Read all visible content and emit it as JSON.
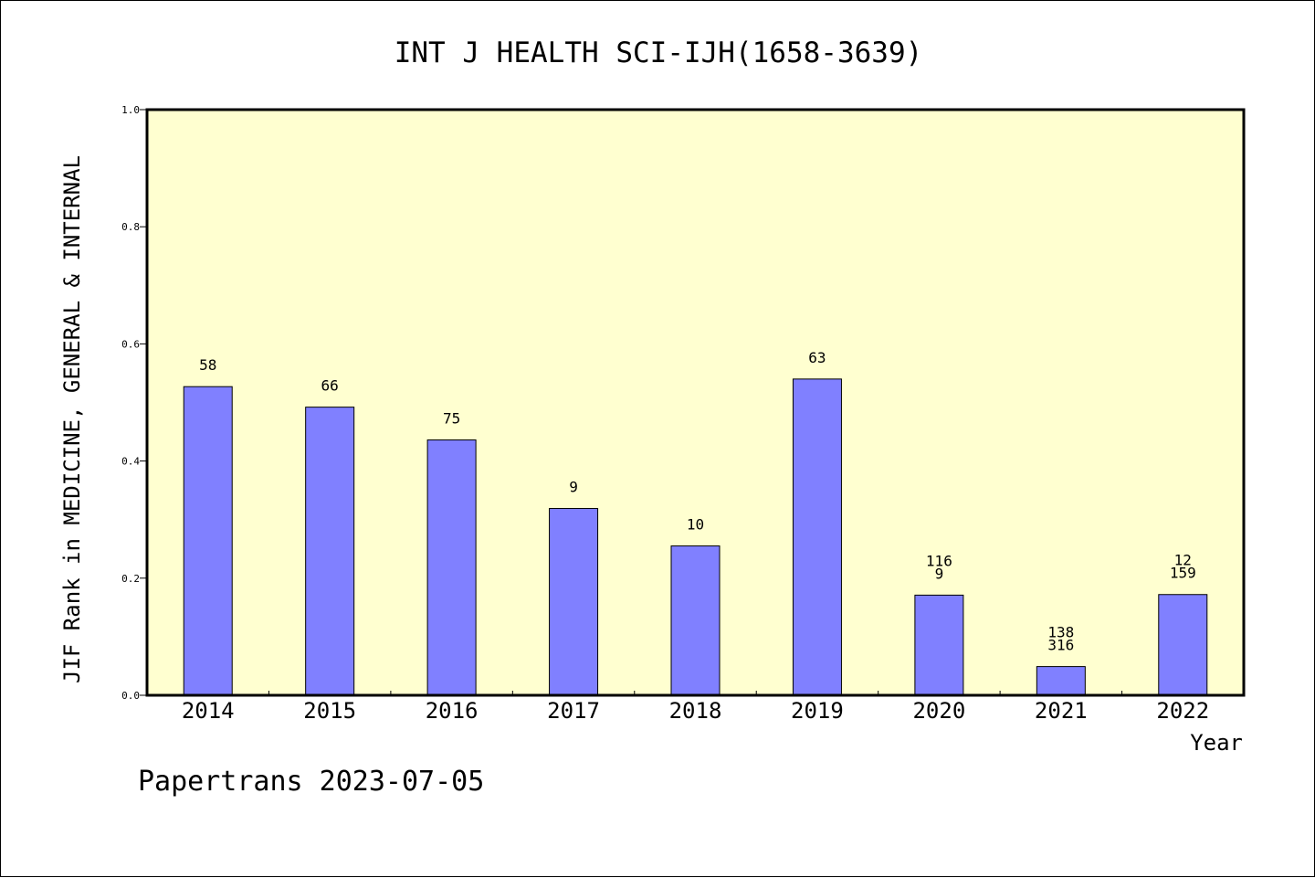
{
  "chart_data": {
    "type": "bar",
    "title": "INT J HEALTH SCI-IJH(1658-3639)",
    "xlabel": "Year",
    "ylabel": "JIF Rank in MEDICINE, GENERAL & INTERNAL",
    "ylim": [
      0.0,
      1.0
    ],
    "yticks": [
      "0.0",
      "0.2",
      "0.4",
      "0.6",
      "0.8",
      "1.0"
    ],
    "categories": [
      "2014",
      "2015",
      "2016",
      "2017",
      "2018",
      "2019",
      "2020",
      "2021",
      "2022"
    ],
    "values": [
      0.527,
      0.492,
      0.436,
      0.319,
      0.255,
      0.54,
      0.171,
      0.049,
      0.172
    ],
    "bar_labels": [
      [
        "58"
      ],
      [
        "66"
      ],
      [
        "75"
      ],
      [
        "9"
      ],
      [
        "10"
      ],
      [
        "63"
      ],
      [
        "116",
        "9"
      ],
      [
        "138",
        "316"
      ],
      [
        "12",
        "159"
      ]
    ],
    "grid": false,
    "colors": {
      "bar": "#8080ff",
      "plot_background": "#ffffd0",
      "border": "#000000"
    }
  },
  "footer": {
    "text": "Papertrans 2023-07-05"
  }
}
